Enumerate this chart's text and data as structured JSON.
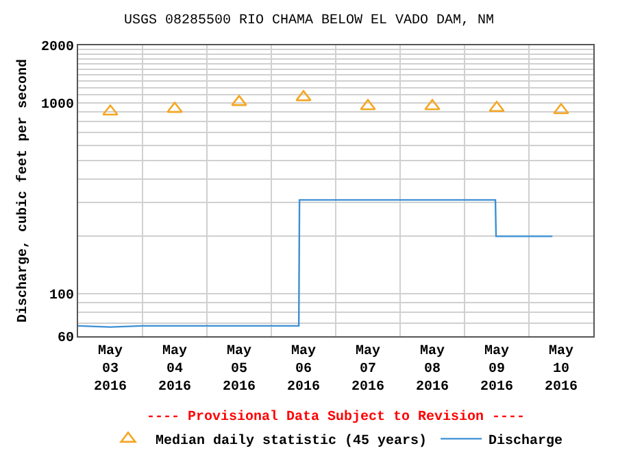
{
  "chart_data": {
    "type": "line",
    "title": "USGS 08285500 RIO CHAMA BELOW EL VADO DAM, NM",
    "ylabel": "Discharge, cubic feet per second",
    "log": "y",
    "grid": true,
    "legend": "bottom",
    "annotations": [
      "---- Provisional Data Subject to Revision ----"
    ],
    "xlim": [
      "2016-05-03T00:00",
      "2016-05-11T00:00"
    ],
    "xticks": [
      {
        "value": "2016-05-03T12:00",
        "label": "May\n03\n2016"
      },
      {
        "value": "2016-05-04T12:00",
        "label": "May\n04\n2016"
      },
      {
        "value": "2016-05-05T12:00",
        "label": "May\n05\n2016"
      },
      {
        "value": "2016-05-06T12:00",
        "label": "May\n06\n2016"
      },
      {
        "value": "2016-05-07T12:00",
        "label": "May\n07\n2016"
      },
      {
        "value": "2016-05-08T12:00",
        "label": "May\n08\n2016"
      },
      {
        "value": "2016-05-09T12:00",
        "label": "May\n09\n2016"
      },
      {
        "value": "2016-05-10T12:00",
        "label": "May\n10\n2016"
      },
      {
        "value": "2016-05-04T00:00",
        "label": null
      },
      {
        "value": "2016-05-05T00:00",
        "label": null
      },
      {
        "value": "2016-05-06T00:00",
        "label": null
      },
      {
        "value": "2016-05-07T00:00",
        "label": null
      },
      {
        "value": "2016-05-08T00:00",
        "label": null
      },
      {
        "value": "2016-05-09T00:00",
        "label": null
      },
      {
        "value": "2016-05-10T00:00",
        "label": null
      }
    ],
    "ylim": [
      60,
      2000
    ],
    "yticks": [
      60,
      {
        "value": 70,
        "label": null
      },
      {
        "value": 80,
        "label": null
      },
      {
        "value": 90,
        "label": null
      },
      100,
      {
        "value": 200,
        "label": null
      },
      {
        "value": 300,
        "label": null
      },
      {
        "value": 400,
        "label": null
      },
      {
        "value": 500,
        "label": null
      },
      {
        "value": 600,
        "label": null
      },
      {
        "value": 700,
        "label": null
      },
      {
        "value": 800,
        "label": null
      },
      {
        "value": 900,
        "label": null
      },
      1000,
      {
        "value": 1100,
        "label": null
      },
      {
        "value": 1200,
        "label": null
      },
      {
        "value": 1300,
        "label": null
      },
      {
        "value": 1400,
        "label": null
      },
      {
        "value": 1500,
        "label": null
      },
      {
        "value": 1600,
        "label": null
      },
      {
        "value": 1700,
        "label": null
      },
      {
        "value": 1800,
        "label": null
      },
      {
        "value": 1900,
        "label": null
      },
      2000
    ],
    "series": [
      {
        "name": "Median daily statistic (45 years)",
        "type": "scatter",
        "marker": "triangle",
        "color": "#f5a623",
        "x": [
          "2016-05-03T12:00",
          "2016-05-04T12:00",
          "2016-05-05T12:00",
          "2016-05-06T12:00",
          "2016-05-07T12:00",
          "2016-05-08T12:00",
          "2016-05-09T12:00",
          "2016-05-10T12:00"
        ],
        "values": [
          900,
          930,
          1010,
          1070,
          960,
          960,
          940,
          915
        ]
      },
      {
        "name": "Discharge",
        "color": "#3b8fd4",
        "x": [
          "2016-05-03T00:00",
          "2016-05-03T12:00",
          "2016-05-04T00:00",
          "2016-05-04T12:00",
          "2016-05-05T00:00",
          "2016-05-05T12:00",
          "2016-05-06T00:00",
          "2016-05-06T10:15",
          "2016-05-06T10:30",
          "2016-05-07T00:00",
          "2016-05-08T00:00",
          "2016-05-09T00:00",
          "2016-05-09T11:30",
          "2016-05-09T11:45",
          "2016-05-10T00:00",
          "2016-05-10T08:45"
        ],
        "values": [
          68,
          67,
          68,
          68,
          68,
          68,
          68,
          68,
          310,
          310,
          310,
          310,
          310,
          200,
          200,
          200
        ]
      }
    ]
  }
}
